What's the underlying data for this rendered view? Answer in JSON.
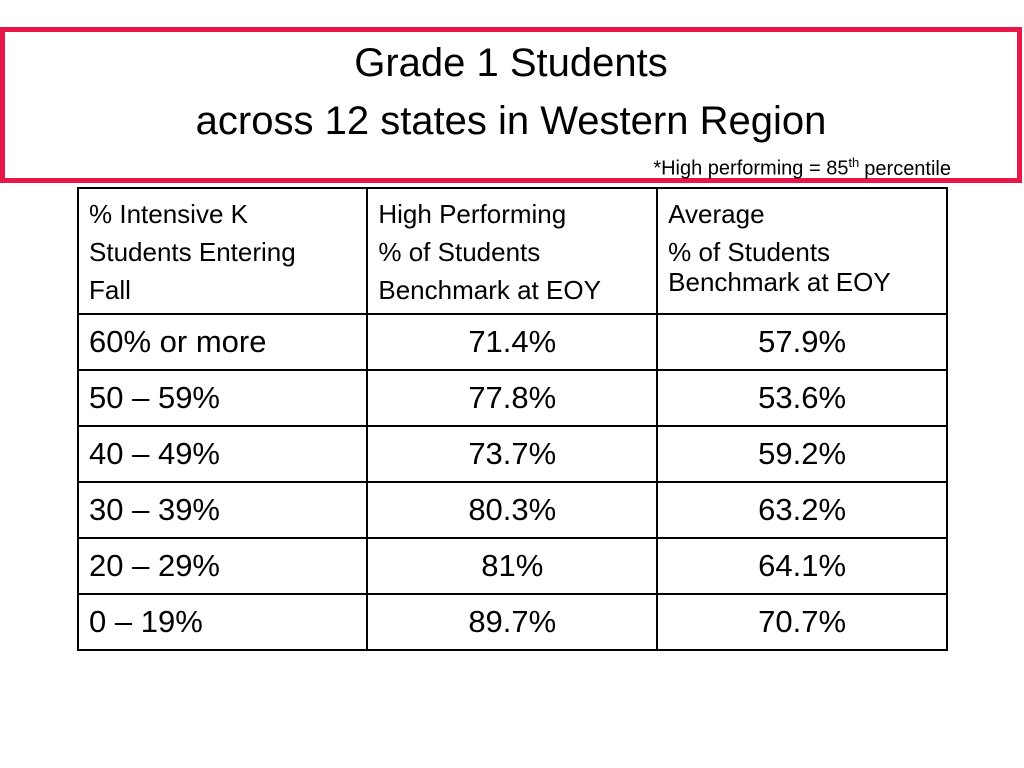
{
  "header": {
    "title_lines": [
      "Grade 1 Students",
      "across 12 states in Western Region"
    ],
    "note": {
      "text": "*High performing = 85",
      "sup": "th",
      "after": "percentile"
    }
  },
  "table": {
    "columns": [
      [
        "%  Intensive K",
        "Students Entering",
        "Fall"
      ],
      [
        "High Performing",
        "% of Students",
        "Benchmark at EOY"
      ],
      [
        "Average",
        "% of Students Benchmark at EOY"
      ]
    ],
    "rows": [
      [
        "60% or more",
        "71.4%",
        "57.9%"
      ],
      [
        "50 – 59%",
        "77.8%",
        "53.6%"
      ],
      [
        "40 – 49%",
        "73.7%",
        "59.2%"
      ],
      [
        "30 – 39%",
        "80.3%",
        "63.2%"
      ],
      [
        "20 – 29%",
        "81%",
        "64.1%"
      ],
      [
        "0 – 19%",
        "89.7%",
        "70.7%"
      ]
    ]
  }
}
